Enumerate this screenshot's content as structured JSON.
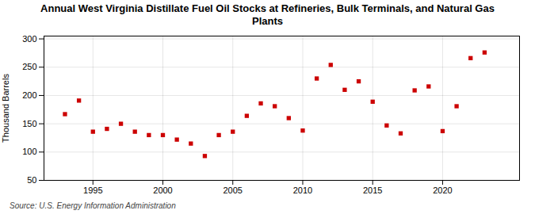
{
  "chart_data": {
    "type": "scatter",
    "title": "Annual West Virginia Distillate Fuel Oil Stocks at Refineries, Bulk Terminals, and Natural Gas\nPlants",
    "ylabel": "Thousand Barrels",
    "annotations": [
      "Source: U.S. Energy Information Administration"
    ],
    "x": [
      1993,
      1994,
      1995,
      1996,
      1997,
      1998,
      1999,
      2000,
      2001,
      2002,
      2003,
      2004,
      2005,
      2006,
      2007,
      2008,
      2009,
      2010,
      2011,
      2012,
      2013,
      2014,
      2015,
      2016,
      2017,
      2018,
      2019,
      2020,
      2021,
      2022,
      2023
    ],
    "values": [
      167,
      191,
      136,
      141,
      150,
      136,
      130,
      130,
      122,
      115,
      93,
      130,
      136,
      164,
      186,
      181,
      160,
      138,
      230,
      254,
      210,
      225,
      189,
      147,
      133,
      209,
      216,
      137,
      181,
      266,
      276
    ],
    "color": "#cc0000",
    "marker": "square",
    "xlim": [
      1991.5,
      2025.5
    ],
    "xticks": [
      1995,
      2000,
      2005,
      2010,
      2015,
      2020
    ],
    "ylim": [
      50,
      305
    ],
    "yticks": [
      50,
      100,
      150,
      200,
      250,
      300
    ],
    "grid": true
  }
}
